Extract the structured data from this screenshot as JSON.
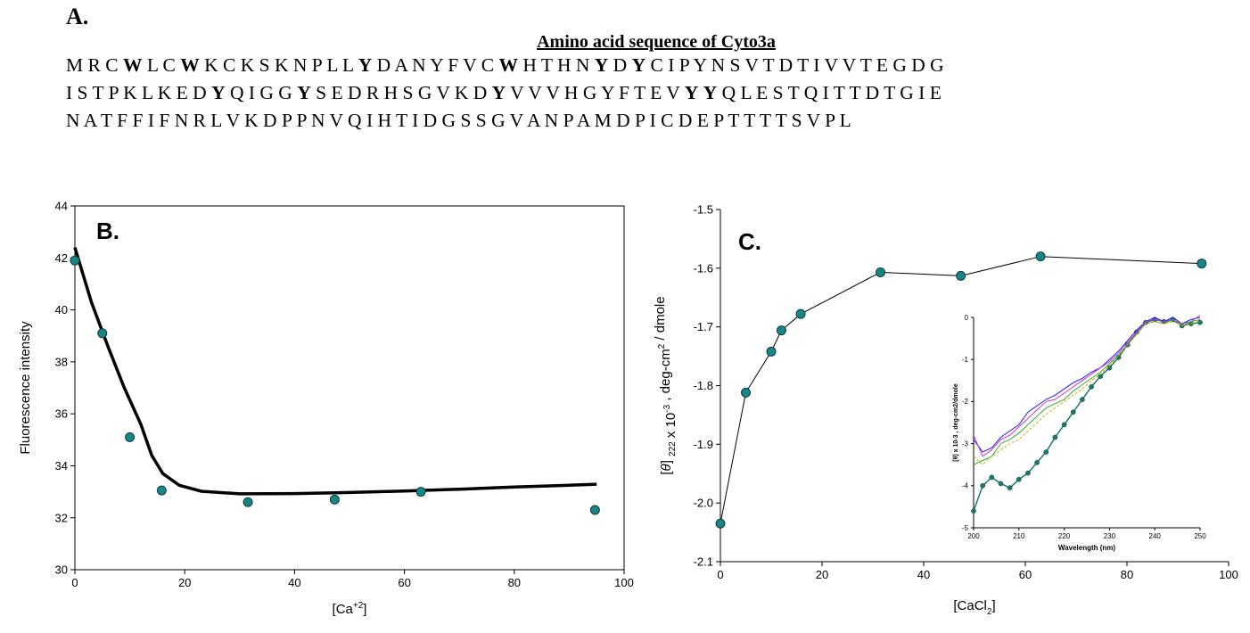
{
  "panel_a": {
    "label": "A.",
    "title": "Amino acid sequence of Cyto3a",
    "lines": [
      "M R C **W** L C **W** K C K S K N P L L **Y** D A N Y F V C **W** H T H N **Y** D **Y** C I P Y N S V T D T I V V T E G D G",
      "I S T P K L K E D **Y** Q I G G **Y** S E D R H S G V K D **Y** V V V H G Y F T E V **Y** **Y** Q L E S T Q I T T D T G I E",
      "N A T F F I F N R L V K D P P N V Q I H T I D G S S G V A N P A M D P I C D E P T T T T S V P L"
    ]
  },
  "chart_data": [
    {
      "type": "scatter",
      "panel_label": "B.",
      "xlabel": "[Ca+2]",
      "ylabel": "Fluorescence intensity",
      "xlim": [
        0,
        100
      ],
      "ylim": [
        30,
        44
      ],
      "xticks": [
        0,
        20,
        40,
        60,
        80,
        100
      ],
      "yticks": [
        30,
        32,
        34,
        36,
        38,
        40,
        42,
        44
      ],
      "points": [
        {
          "x": 0,
          "y": 41.9
        },
        {
          "x": 5,
          "y": 39.1
        },
        {
          "x": 10,
          "y": 35.1
        },
        {
          "x": 15.8,
          "y": 33.05
        },
        {
          "x": 31.5,
          "y": 32.6
        },
        {
          "x": 47.3,
          "y": 32.7
        },
        {
          "x": 63,
          "y": 33.0
        },
        {
          "x": 94.7,
          "y": 32.3
        }
      ],
      "fit_curve": [
        {
          "x": 0,
          "y": 42.4
        },
        {
          "x": 3,
          "y": 40.3
        },
        {
          "x": 6,
          "y": 38.6
        },
        {
          "x": 9,
          "y": 37.0
        },
        {
          "x": 12,
          "y": 35.6
        },
        {
          "x": 14,
          "y": 34.4
        },
        {
          "x": 16,
          "y": 33.7
        },
        {
          "x": 19,
          "y": 33.25
        },
        {
          "x": 23,
          "y": 33.02
        },
        {
          "x": 30,
          "y": 32.92
        },
        {
          "x": 40,
          "y": 32.93
        },
        {
          "x": 50,
          "y": 32.97
        },
        {
          "x": 60,
          "y": 33.03
        },
        {
          "x": 70,
          "y": 33.1
        },
        {
          "x": 80,
          "y": 33.18
        },
        {
          "x": 90,
          "y": 33.25
        },
        {
          "x": 95,
          "y": 33.29
        }
      ],
      "marker_color": "#1a8585",
      "line_color": "#000000"
    },
    {
      "type": "line",
      "panel_label": "C.",
      "xlabel": "[CaCl2]",
      "ylabel": "[θ] 222 x 10-3 , deg-cm2 / dmole",
      "xlim": [
        0,
        100
      ],
      "ylim": [
        -2.1,
        -1.5
      ],
      "xticks": [
        0,
        20,
        40,
        60,
        80,
        100
      ],
      "yticks": [
        -2.1,
        -2.0,
        -1.9,
        -1.8,
        -1.7,
        -1.6,
        -1.5
      ],
      "points": [
        {
          "x": 0,
          "y": -2.035
        },
        {
          "x": 5,
          "y": -1.812
        },
        {
          "x": 10,
          "y": -1.742
        },
        {
          "x": 12,
          "y": -1.706
        },
        {
          "x": 15.8,
          "y": -1.678
        },
        {
          "x": 31.5,
          "y": -1.607
        },
        {
          "x": 47.3,
          "y": -1.613
        },
        {
          "x": 63,
          "y": -1.58
        },
        {
          "x": 94.7,
          "y": -1.592
        }
      ],
      "marker_color": "#1a8585",
      "line_color": "#000000"
    },
    {
      "type": "line",
      "panel_label": "inset",
      "xlabel": "Wavelength (nm)",
      "ylabel": "[θ] x 10-3 , deg-cm2/dmole",
      "xlim": [
        200,
        250
      ],
      "ylim": [
        -5,
        0
      ],
      "xticks": [
        200,
        210,
        220,
        230,
        240,
        250
      ],
      "yticks": [
        -5,
        -4,
        -3,
        -2,
        -1,
        0
      ],
      "series": [
        {
          "color": "#1a7a6a",
          "points": [
            [
              200,
              -4.6
            ],
            [
              202,
              -4.0
            ],
            [
              204,
              -3.8
            ],
            [
              206,
              -3.95
            ],
            [
              208,
              -4.05
            ],
            [
              210,
              -3.85
            ],
            [
              212,
              -3.7
            ],
            [
              214,
              -3.45
            ],
            [
              216,
              -3.2
            ],
            [
              218,
              -2.85
            ],
            [
              220,
              -2.55
            ],
            [
              222,
              -2.25
            ],
            [
              224,
              -1.95
            ],
            [
              226,
              -1.65
            ],
            [
              228,
              -1.4
            ],
            [
              230,
              -1.2
            ],
            [
              232,
              -0.95
            ],
            [
              234,
              -0.65
            ],
            [
              236,
              -0.35
            ],
            [
              238,
              -0.12
            ],
            [
              240,
              -0.05
            ],
            [
              242,
              -0.1
            ],
            [
              244,
              -0.05
            ],
            [
              246,
              -0.2
            ],
            [
              248,
              -0.15
            ],
            [
              250,
              -0.12
            ]
          ]
        },
        {
          "color": "#1a1aff",
          "points": [
            [
              200,
              -2.9
            ],
            [
              202,
              -3.2
            ],
            [
              204,
              -3.1
            ],
            [
              206,
              -2.85
            ],
            [
              208,
              -2.7
            ],
            [
              210,
              -2.55
            ],
            [
              212,
              -2.25
            ],
            [
              214,
              -2.1
            ],
            [
              216,
              -1.95
            ],
            [
              218,
              -1.85
            ],
            [
              220,
              -1.7
            ],
            [
              222,
              -1.55
            ],
            [
              224,
              -1.45
            ],
            [
              226,
              -1.3
            ],
            [
              228,
              -1.2
            ],
            [
              230,
              -1.0
            ],
            [
              232,
              -0.8
            ],
            [
              234,
              -0.55
            ],
            [
              236,
              -0.3
            ],
            [
              238,
              -0.1
            ],
            [
              240,
              0.0
            ],
            [
              242,
              -0.1
            ],
            [
              244,
              0.0
            ],
            [
              246,
              -0.15
            ],
            [
              248,
              -0.05
            ],
            [
              250,
              0.0
            ]
          ]
        },
        {
          "color": "#cc33cc",
          "points": [
            [
              200,
              -2.8
            ],
            [
              202,
              -3.3
            ],
            [
              204,
              -3.15
            ],
            [
              206,
              -2.9
            ],
            [
              208,
              -2.8
            ],
            [
              210,
              -2.6
            ],
            [
              212,
              -2.4
            ],
            [
              214,
              -2.2
            ],
            [
              216,
              -2.0
            ],
            [
              218,
              -1.95
            ],
            [
              220,
              -1.8
            ],
            [
              222,
              -1.65
            ],
            [
              224,
              -1.5
            ],
            [
              226,
              -1.35
            ],
            [
              228,
              -1.2
            ],
            [
              230,
              -1.05
            ],
            [
              232,
              -0.85
            ],
            [
              234,
              -0.6
            ],
            [
              236,
              -0.35
            ],
            [
              238,
              -0.1
            ],
            [
              240,
              -0.05
            ],
            [
              242,
              -0.1
            ],
            [
              244,
              -0.05
            ],
            [
              246,
              -0.15
            ],
            [
              248,
              -0.1
            ],
            [
              250,
              0.05
            ]
          ]
        },
        {
          "color": "#33aa33",
          "points": [
            [
              200,
              -3.5
            ],
            [
              202,
              -3.4
            ],
            [
              204,
              -3.3
            ],
            [
              206,
              -3.0
            ],
            [
              208,
              -2.9
            ],
            [
              210,
              -2.75
            ],
            [
              212,
              -2.55
            ],
            [
              214,
              -2.35
            ],
            [
              216,
              -2.15
            ],
            [
              218,
              -2.05
            ],
            [
              220,
              -1.95
            ],
            [
              222,
              -1.75
            ],
            [
              224,
              -1.6
            ],
            [
              226,
              -1.45
            ],
            [
              228,
              -1.3
            ],
            [
              230,
              -1.1
            ],
            [
              232,
              -0.9
            ],
            [
              234,
              -0.65
            ],
            [
              236,
              -0.4
            ],
            [
              238,
              -0.15
            ],
            [
              240,
              -0.1
            ],
            [
              242,
              -0.15
            ],
            [
              244,
              -0.05
            ],
            [
              246,
              -0.2
            ],
            [
              248,
              -0.1
            ],
            [
              250,
              -0.05
            ]
          ]
        },
        {
          "color": "#c8b400",
          "points": [
            [
              200,
              -3.3
            ],
            [
              202,
              -3.5
            ],
            [
              204,
              -3.3
            ],
            [
              206,
              -3.15
            ],
            [
              208,
              -3.0
            ],
            [
              210,
              -2.9
            ],
            [
              212,
              -2.7
            ],
            [
              214,
              -2.5
            ],
            [
              216,
              -2.3
            ],
            [
              218,
              -2.15
            ],
            [
              220,
              -2.0
            ],
            [
              222,
              -1.85
            ],
            [
              224,
              -1.7
            ],
            [
              226,
              -1.5
            ],
            [
              228,
              -1.35
            ],
            [
              230,
              -1.15
            ],
            [
              232,
              -0.9
            ],
            [
              234,
              -0.65
            ],
            [
              236,
              -0.4
            ],
            [
              238,
              -0.15
            ],
            [
              240,
              -0.1
            ],
            [
              242,
              -0.15
            ],
            [
              244,
              -0.1
            ],
            [
              246,
              -0.2
            ],
            [
              248,
              -0.15
            ],
            [
              250,
              -0.1
            ]
          ]
        }
      ]
    }
  ]
}
